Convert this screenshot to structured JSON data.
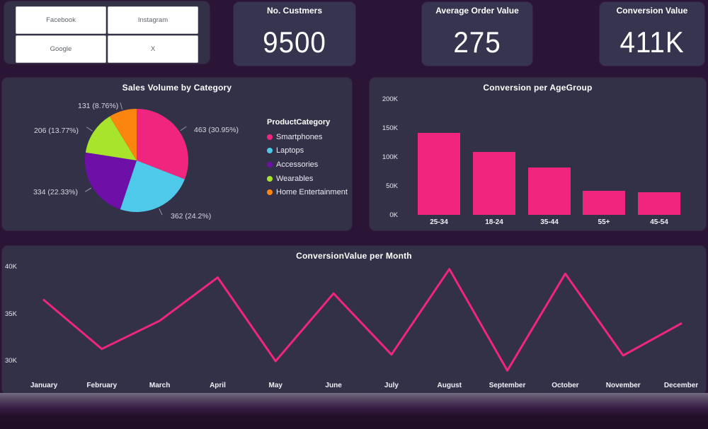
{
  "theme": {
    "page_bg": "#2a1537",
    "panel_bg": "#323148",
    "card_bg": "#36344e",
    "accent_pink": "#f0267e",
    "button_bg": "#ffffff",
    "button_text": "#5f6368"
  },
  "social": {
    "buttons": [
      "Facebook",
      "Instagram",
      "Google",
      "X"
    ]
  },
  "kpis": [
    {
      "title": "No. Custmers",
      "value": "9500"
    },
    {
      "title": "Average Order Value",
      "value": "275"
    },
    {
      "title": "Conversion Value",
      "value": "411K"
    }
  ],
  "chart_data": [
    {
      "id": "category-pie",
      "type": "pie",
      "title": "Sales Volume by Category",
      "legend_title": "ProductCategory",
      "legend_position": "right",
      "slices": [
        {
          "label": "Smartphones",
          "value": 463,
          "pct": 30.95,
          "color": "#f0267e",
          "data_label": "463 (30.95%)"
        },
        {
          "label": "Laptops",
          "value": 362,
          "pct": 24.2,
          "color": "#4ec9ea",
          "data_label": "362 (24.2%)"
        },
        {
          "label": "Accessories",
          "value": 334,
          "pct": 22.33,
          "color": "#6e10a8",
          "data_label": "334 (22.33%)"
        },
        {
          "label": "Wearables",
          "value": 206,
          "pct": 13.77,
          "color": "#a9e42c",
          "data_label": "206 (13.77%)"
        },
        {
          "label": "Home Entertainment",
          "value": 131,
          "pct": 8.76,
          "color": "#fc850f",
          "data_label": "131 (8.76%)"
        }
      ]
    },
    {
      "id": "agegroup-bar",
      "type": "bar",
      "title": "Conversion per AgeGroup",
      "categories": [
        "25-34",
        "18-24",
        "35-44",
        "55+",
        "45-54"
      ],
      "values": [
        142000,
        108000,
        82000,
        42000,
        39000
      ],
      "bar_color": "#f0267e",
      "ylim": [
        0,
        200000
      ],
      "yticks": [
        {
          "v": 0,
          "label": "0K"
        },
        {
          "v": 50000,
          "label": "50K"
        },
        {
          "v": 100000,
          "label": "100K"
        },
        {
          "v": 150000,
          "label": "150K"
        },
        {
          "v": 200000,
          "label": "200K"
        }
      ],
      "grid": false,
      "xlabel": "",
      "ylabel": ""
    },
    {
      "id": "month-line",
      "type": "line",
      "title": "ConversionValue per Month",
      "x": [
        "January",
        "February",
        "March",
        "April",
        "May",
        "June",
        "July",
        "August",
        "September",
        "October",
        "November",
        "December"
      ],
      "values": [
        36500,
        31300,
        34300,
        38900,
        30000,
        37200,
        30700,
        39800,
        29000,
        39300,
        30600,
        34000
      ],
      "line_color": "#f0267e",
      "ylim": [
        28500,
        41500
      ],
      "yticks": [
        {
          "v": 30000,
          "label": "30K"
        },
        {
          "v": 35000,
          "label": "35K"
        },
        {
          "v": 40000,
          "label": "40K"
        }
      ],
      "grid": false,
      "xlabel": "",
      "ylabel": ""
    }
  ]
}
